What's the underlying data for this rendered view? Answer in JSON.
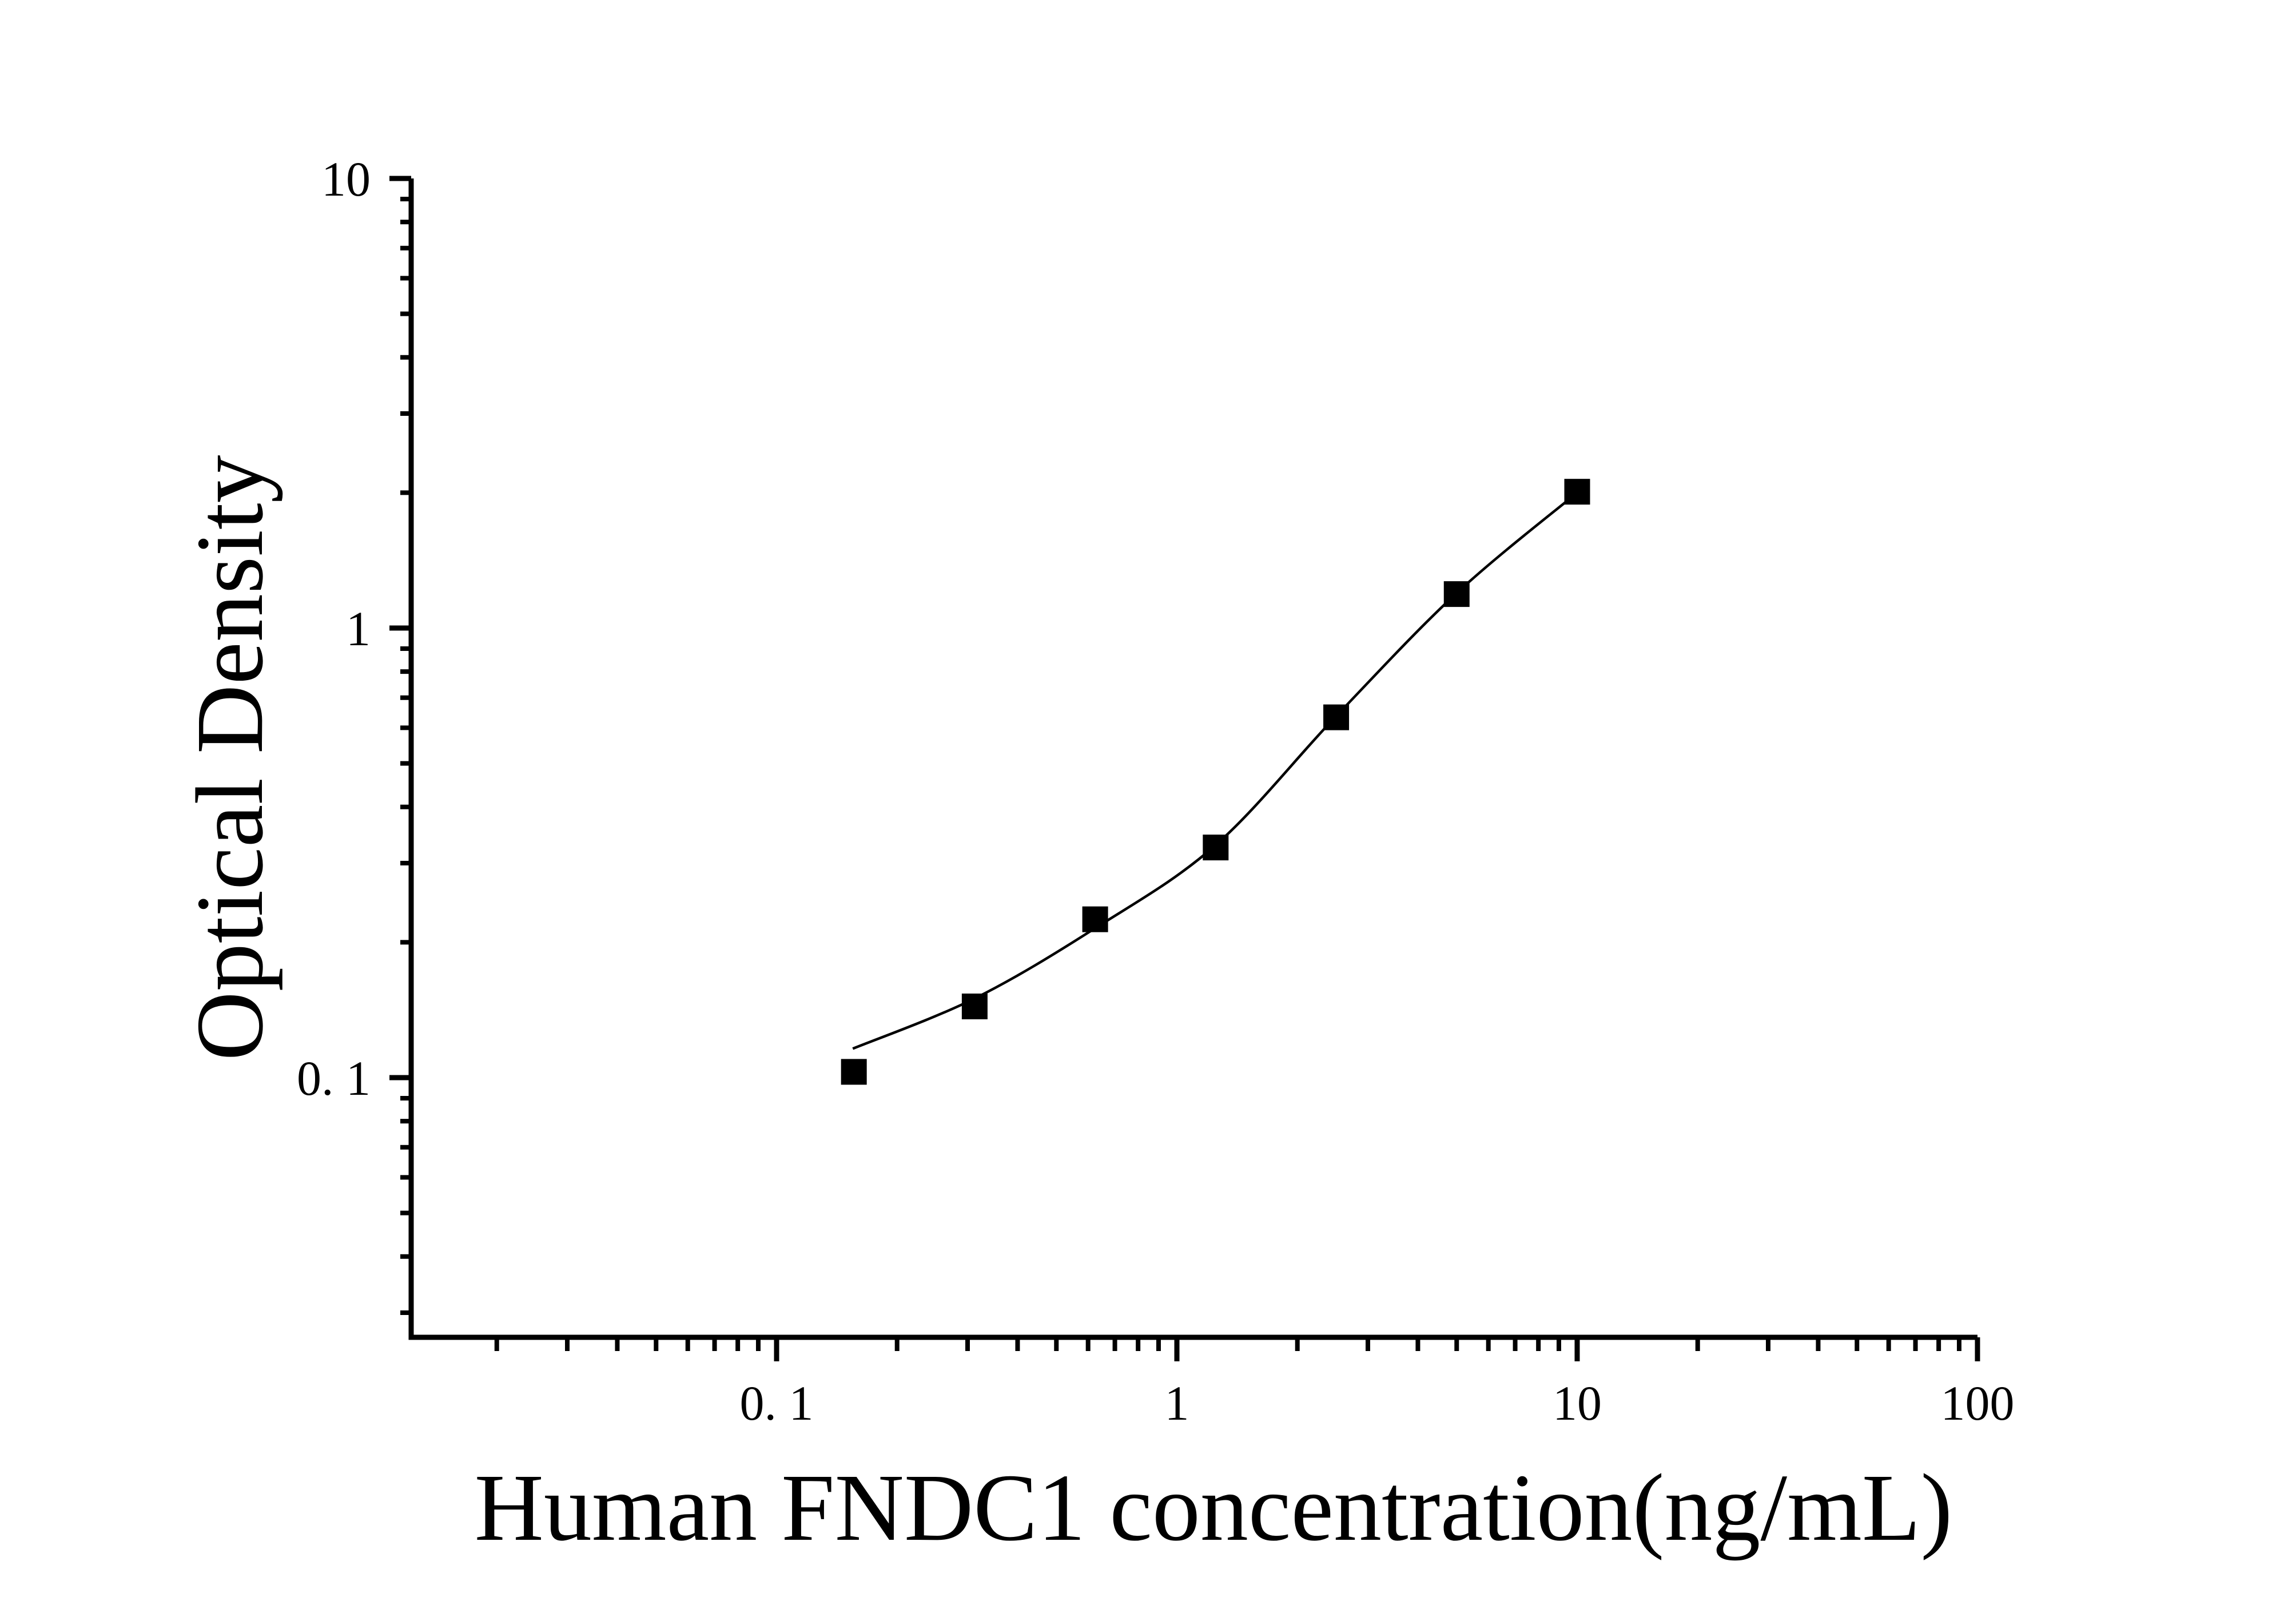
{
  "colors": {
    "foreground": "#000000",
    "background": "#ffffff"
  },
  "chart_data": {
    "type": "scatter",
    "title": "",
    "xlabel": "Human FNDC1 concentration(ng/mL)",
    "ylabel": "Optical Density",
    "x_scale": "log",
    "y_scale": "log",
    "xlim": [
      0.0123,
      100
    ],
    "ylim": [
      0.0264,
      10
    ],
    "grid": false,
    "legend": null,
    "x_major_ticks": [
      0.1,
      1,
      10,
      100
    ],
    "x_major_tick_labels": [
      "0. 1",
      "1",
      "10",
      "100"
    ],
    "x_minor_ticks": [
      0.02,
      0.03,
      0.04,
      0.05,
      0.06,
      0.07,
      0.08,
      0.09,
      0.2,
      0.3,
      0.4,
      0.5,
      0.6,
      0.7,
      0.8,
      0.9,
      2,
      3,
      4,
      5,
      6,
      7,
      8,
      9,
      20,
      30,
      40,
      50,
      60,
      70,
      80,
      90
    ],
    "y_major_ticks": [
      10,
      1,
      0.1
    ],
    "y_major_tick_labels": [
      "10",
      "1",
      "0. 1"
    ],
    "y_minor_ticks": [
      9,
      8,
      7,
      6,
      5,
      4,
      3,
      2,
      0.9,
      0.8,
      0.7,
      0.6,
      0.5,
      0.4,
      0.3,
      0.2,
      0.09,
      0.08,
      0.07,
      0.06,
      0.05,
      0.04,
      0.03
    ],
    "series": [
      {
        "name": "standards",
        "marker": "filled-square",
        "color": "#000000",
        "points": [
          {
            "x": 0.156,
            "y": 0.103
          },
          {
            "x": 0.3125,
            "y": 0.144
          },
          {
            "x": 0.625,
            "y": 0.225
          },
          {
            "x": 1.25,
            "y": 0.325
          },
          {
            "x": 2.5,
            "y": 0.633
          },
          {
            "x": 5,
            "y": 1.19
          },
          {
            "x": 10,
            "y": 2.01
          }
        ]
      }
    ],
    "fit_curve": {
      "name": "4PL-fit",
      "color": "#000000",
      "points": [
        {
          "x": 0.155,
          "y": 0.116
        },
        {
          "x": 0.3125,
          "y": 0.15
        },
        {
          "x": 0.625,
          "y": 0.215
        },
        {
          "x": 1.25,
          "y": 0.329
        },
        {
          "x": 2.5,
          "y": 0.637
        },
        {
          "x": 5,
          "y": 1.196
        },
        {
          "x": 10,
          "y": 2.0
        }
      ]
    }
  }
}
